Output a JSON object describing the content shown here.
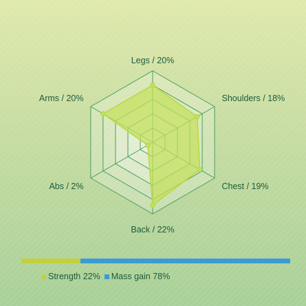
{
  "chart_data": {
    "type": "radar",
    "axes": [
      {
        "name": "Legs",
        "pct": "20%",
        "label": "Legs / 20%",
        "value": 20
      },
      {
        "name": "Shoulders",
        "pct": "18%",
        "label": "Shoulders / 18%",
        "value": 18
      },
      {
        "name": "Chest",
        "pct": "19%",
        "label": "Chest / 19%",
        "value": 19
      },
      {
        "name": "Back",
        "pct": "22%",
        "label": "Back / 22%",
        "value": 22
      },
      {
        "name": "Abs",
        "pct": "2%",
        "label": "Abs / 2%",
        "value": 2
      },
      {
        "name": "Arms",
        "pct": "20%",
        "label": "Arms / 20%",
        "value": 20
      }
    ],
    "range": [
      0,
      25
    ],
    "rings": 5,
    "grid": true,
    "colors": {
      "grid": "#4aa05a",
      "fill": "#c4e05a",
      "stroke": "#b8d840",
      "point": "#c4e05a"
    },
    "split_bar": [
      {
        "name": "Strength",
        "value": 22,
        "color": "#c4cf3c"
      },
      {
        "name": "Mass gain",
        "value": 78,
        "color": "#3b9bd6"
      }
    ]
  },
  "legend": [
    {
      "label": "Strength 22%",
      "color": "#c4cf3c"
    },
    {
      "label": "Mass gain 78%",
      "color": "#3b9bd6"
    }
  ]
}
